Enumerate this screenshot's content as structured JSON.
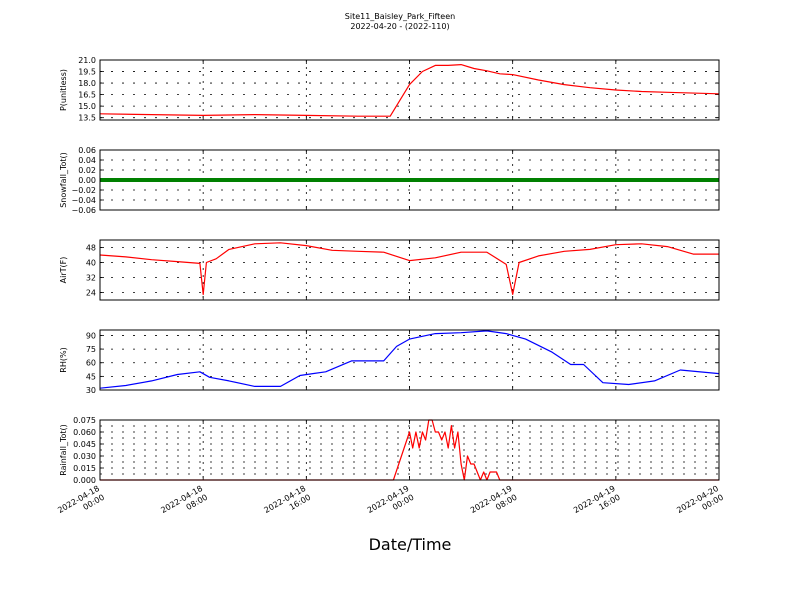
{
  "title": "Site11_Baisley_Park_Fifteen",
  "subtitle": "2022-04-20 - (2022-110)",
  "xlabel": "Date/Time",
  "x_ticks": [
    {
      "x": "2022-04-18 00:00",
      "line1": "2022-04-18",
      "line2": "00:00"
    },
    {
      "x": "2022-04-18 08:00",
      "line1": "2022-04-18",
      "line2": "08:00"
    },
    {
      "x": "2022-04-18 16:00",
      "line1": "2022-04-18",
      "line2": "16:00"
    },
    {
      "x": "2022-04-19 00:00",
      "line1": "2022-04-19",
      "line2": "00:00"
    },
    {
      "x": "2022-04-19 08:00",
      "line1": "2022-04-19",
      "line2": "08:00"
    },
    {
      "x": "2022-04-19 16:00",
      "line1": "2022-04-19",
      "line2": "16:00"
    },
    {
      "x": "2022-04-20 00:00",
      "line1": "2022-04-20",
      "line2": "00:00"
    }
  ],
  "chart_data": [
    {
      "type": "line",
      "ylabel": "P(unitless)",
      "xlim": [
        "2022-04-18 00:00",
        "2022-04-20 00:00"
      ],
      "ylim": [
        13.2,
        21.0
      ],
      "yticks": [
        13.5,
        15.0,
        16.5,
        18.0,
        19.5,
        21.0
      ],
      "ytick_labels": [
        "13.5",
        "15.0",
        "16.5",
        "18.0",
        "19.5",
        "21.0"
      ],
      "color": "#ff0000",
      "grid": true,
      "series": [
        {
          "x": [
            "2022-04-18 00:00",
            "2022-04-18 04:00",
            "2022-04-18 08:00",
            "2022-04-18 12:00",
            "2022-04-18 16:00",
            "2022-04-18 20:00",
            "2022-04-18 22:30",
            "2022-04-19 00:00",
            "2022-04-19 01:00",
            "2022-04-19 02:00",
            "2022-04-19 03:00",
            "2022-04-19 04:00",
            "2022-04-19 05:00",
            "2022-04-19 06:00",
            "2022-04-19 07:00",
            "2022-04-19 08:00",
            "2022-04-19 10:00",
            "2022-04-19 12:00",
            "2022-04-19 14:00",
            "2022-04-19 16:00",
            "2022-04-19 18:00",
            "2022-04-19 20:00",
            "2022-04-20 00:00"
          ],
          "y": [
            14.0,
            13.9,
            13.8,
            13.9,
            13.8,
            13.7,
            13.7,
            17.8,
            19.5,
            20.3,
            20.3,
            20.4,
            19.9,
            19.6,
            19.2,
            19.1,
            18.4,
            17.8,
            17.4,
            17.1,
            16.9,
            16.8,
            16.6
          ]
        }
      ]
    },
    {
      "type": "line",
      "ylabel": "Snowfall_Tot()",
      "xlim": [
        "2022-04-18 00:00",
        "2022-04-20 00:00"
      ],
      "ylim": [
        -0.06,
        0.06
      ],
      "yticks": [
        -0.06,
        -0.04,
        -0.02,
        0.0,
        0.02,
        0.04,
        0.06
      ],
      "ytick_labels": [
        "−0.06",
        "−0.04",
        "−0.02",
        "0.00",
        "0.02",
        "0.04",
        "0.06"
      ],
      "color": "#008000",
      "grid": true,
      "series": [
        {
          "x": [
            "2022-04-18 00:00",
            "2022-04-20 00:00"
          ],
          "y": [
            0.0,
            0.0
          ]
        }
      ]
    },
    {
      "type": "line",
      "ylabel": "AirT(F)",
      "xlim": [
        "2022-04-18 00:00",
        "2022-04-20 00:00"
      ],
      "ylim": [
        20,
        52
      ],
      "yticks": [
        24,
        32,
        40,
        48
      ],
      "ytick_labels": [
        "24",
        "32",
        "40",
        "48"
      ],
      "color": "#ff0000",
      "grid": true,
      "series": [
        {
          "x": [
            "2022-04-18 00:00",
            "2022-04-18 02:00",
            "2022-04-18 04:00",
            "2022-04-18 06:00",
            "2022-04-18 07:45",
            "2022-04-18 08:00",
            "2022-04-18 08:15",
            "2022-04-18 09:00",
            "2022-04-18 10:00",
            "2022-04-18 12:00",
            "2022-04-18 14:00",
            "2022-04-18 16:00",
            "2022-04-18 18:00",
            "2022-04-18 20:00",
            "2022-04-18 22:00",
            "2022-04-19 00:00",
            "2022-04-19 02:00",
            "2022-04-19 04:00",
            "2022-04-19 06:00",
            "2022-04-19 07:30",
            "2022-04-19 08:00",
            "2022-04-19 08:30",
            "2022-04-19 10:00",
            "2022-04-19 12:00",
            "2022-04-19 14:00",
            "2022-04-19 16:00",
            "2022-04-19 18:00",
            "2022-04-19 20:00",
            "2022-04-19 22:00",
            "2022-04-20 00:00"
          ],
          "y": [
            44.0,
            43.0,
            41.5,
            40.5,
            39.5,
            23.0,
            40.0,
            42.0,
            47.0,
            50.0,
            50.5,
            49.0,
            46.5,
            46.0,
            45.5,
            41.0,
            42.5,
            45.5,
            45.5,
            39.0,
            23.0,
            40.0,
            43.5,
            46.0,
            47.0,
            49.5,
            50.0,
            48.5,
            44.5,
            44.5
          ]
        }
      ]
    },
    {
      "type": "line",
      "ylabel": "RH(%)",
      "xlim": [
        "2022-04-18 00:00",
        "2022-04-20 00:00"
      ],
      "ylim": [
        30,
        96
      ],
      "yticks": [
        30,
        45,
        60,
        75,
        90
      ],
      "ytick_labels": [
        "30",
        "45",
        "60",
        "75",
        "90"
      ],
      "color": "#0000ff",
      "grid": true,
      "series": [
        {
          "x": [
            "2022-04-18 00:00",
            "2022-04-18 02:00",
            "2022-04-18 04:00",
            "2022-04-18 06:00",
            "2022-04-18 07:45",
            "2022-04-18 08:30",
            "2022-04-18 10:00",
            "2022-04-18 12:00",
            "2022-04-18 14:00",
            "2022-04-18 15:30",
            "2022-04-18 16:30",
            "2022-04-18 17:30",
            "2022-04-18 19:30",
            "2022-04-18 22:00",
            "2022-04-18 23:00",
            "2022-04-19 00:00",
            "2022-04-19 02:00",
            "2022-04-19 04:00",
            "2022-04-19 06:00",
            "2022-04-19 07:30",
            "2022-04-19 09:00",
            "2022-04-19 11:00",
            "2022-04-19 12:30",
            "2022-04-19 13:30",
            "2022-04-19 15:00",
            "2022-04-19 17:00",
            "2022-04-19 19:00",
            "2022-04-19 21:00",
            "2022-04-20 00:00"
          ],
          "y": [
            32,
            35,
            40,
            47,
            50,
            44,
            40,
            34,
            34,
            46,
            48,
            50,
            62,
            62,
            78,
            86,
            92,
            93,
            95,
            92,
            86,
            72,
            58,
            58,
            38,
            36,
            40,
            52,
            48
          ]
        }
      ]
    },
    {
      "type": "line",
      "ylabel": "Rainfall_Tot()",
      "xlim": [
        "2022-04-18 00:00",
        "2022-04-20 00:00"
      ],
      "ylim": [
        0.0,
        0.075
      ],
      "yticks": [
        0.0,
        0.015,
        0.03,
        0.045,
        0.06,
        0.075
      ],
      "ytick_labels": [
        "0.000",
        "0.015",
        "0.030",
        "0.045",
        "0.060",
        "0.075"
      ],
      "minor_grid": [
        0.0075,
        0.0225,
        0.0375,
        0.0525,
        0.0675
      ],
      "color": "#ff0000",
      "grid": true,
      "series": [
        {
          "x": [
            "2022-04-18 00:00",
            "2022-04-18 22:45",
            "2022-04-19 00:00",
            "2022-04-19 00:15",
            "2022-04-19 00:30",
            "2022-04-19 00:45",
            "2022-04-19 01:00",
            "2022-04-19 01:15",
            "2022-04-19 01:30",
            "2022-04-19 01:45",
            "2022-04-19 02:00",
            "2022-04-19 02:15",
            "2022-04-19 02:30",
            "2022-04-19 02:45",
            "2022-04-19 03:00",
            "2022-04-19 03:15",
            "2022-04-19 03:30",
            "2022-04-19 03:45",
            "2022-04-19 04:00",
            "2022-04-19 04:15",
            "2022-04-19 04:30",
            "2022-04-19 04:45",
            "2022-04-19 05:00",
            "2022-04-19 05:15",
            "2022-04-19 05:30",
            "2022-04-19 05:45",
            "2022-04-19 06:00",
            "2022-04-19 06:15",
            "2022-04-19 06:30",
            "2022-04-19 06:45",
            "2022-04-19 07:00",
            "2022-04-19 07:30",
            "2022-04-20 00:00"
          ],
          "y": [
            0.0,
            0.0,
            0.06,
            0.04,
            0.06,
            0.04,
            0.06,
            0.05,
            0.075,
            0.075,
            0.06,
            0.06,
            0.05,
            0.06,
            0.04,
            0.068,
            0.04,
            0.06,
            0.02,
            0.0,
            0.03,
            0.02,
            0.02,
            0.01,
            0.0,
            0.01,
            0.0,
            0.01,
            0.01,
            0.01,
            0.0,
            0.0,
            0.0
          ]
        }
      ]
    }
  ]
}
